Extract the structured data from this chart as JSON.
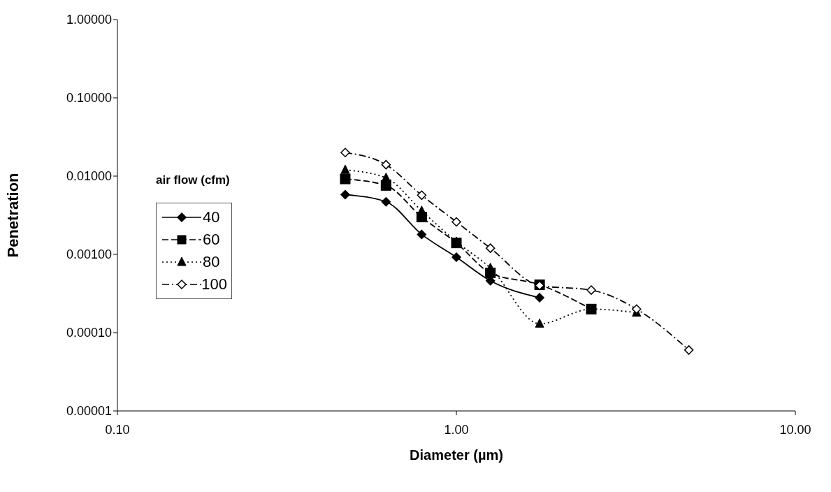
{
  "chart_data": {
    "type": "line",
    "xlabel": "Diameter (µm)",
    "ylabel": "Penetration",
    "legend_title": "air flow (cfm)",
    "log": "xy",
    "legend": "left",
    "grid": false,
    "x": [
      0.47,
      0.62,
      0.79,
      1.0,
      1.26,
      1.76,
      2.5,
      3.4,
      4.85
    ],
    "xlim": [
      0.1,
      10
    ],
    "xticks": [
      {
        "value": 0.1,
        "label": "0.10"
      },
      {
        "value": 1,
        "label": "1.00"
      },
      {
        "value": 10,
        "label": "10.00"
      }
    ],
    "ylim": [
      1e-05,
      1
    ],
    "yticks": [
      {
        "value": 1e-05,
        "label": "0.00001"
      },
      {
        "value": 0.0001,
        "label": "0.00010"
      },
      {
        "value": 0.001,
        "label": "0.00100"
      },
      {
        "value": 0.01,
        "label": "0.01000"
      },
      {
        "value": 0.1,
        "label": "0.10000"
      },
      {
        "value": 1,
        "label": "1.00000"
      }
    ],
    "series": [
      {
        "name": "40",
        "color": "#000000",
        "marker": "diamond",
        "line_style": "solid",
        "values": [
          0.0058,
          0.0047,
          0.0018,
          0.00092,
          0.00046,
          0.00028,
          null,
          null,
          null
        ]
      },
      {
        "name": "60",
        "color": "#000000",
        "marker": "square",
        "line_style": "dashed",
        "values": [
          0.0092,
          0.0076,
          0.003,
          0.0014,
          0.00058,
          0.00041,
          0.0002,
          null,
          null
        ]
      },
      {
        "name": "80",
        "color": "#000000",
        "marker": "triangle",
        "line_style": "dotted",
        "values": [
          0.012,
          0.0095,
          0.0036,
          0.00145,
          0.00067,
          0.00013,
          0.0002,
          0.00018,
          null
        ]
      },
      {
        "name": "100",
        "color": "#000000",
        "marker": "diamond",
        "line_style": "dashdot",
        "values": [
          0.02,
          0.014,
          0.0057,
          0.0026,
          0.0012,
          0.0004,
          0.00035,
          0.0002,
          6e-05
        ]
      }
    ]
  }
}
